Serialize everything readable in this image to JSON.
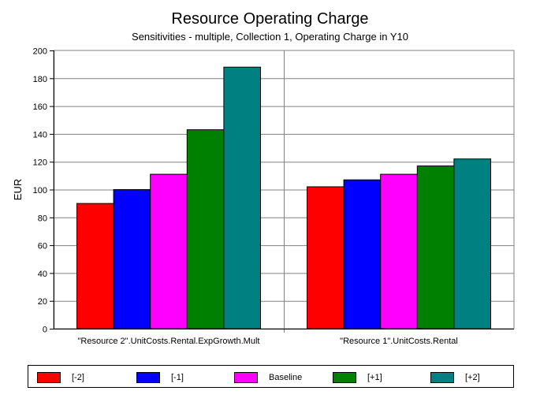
{
  "chart_data": {
    "type": "bar",
    "title": "Resource Operating Charge",
    "subtitle": "Sensitivities - multiple, Collection 1, Operating Charge in Y10",
    "xlabel": "",
    "ylabel": "EUR",
    "ylim": [
      0,
      200
    ],
    "yticks": [
      "0",
      "20",
      "40",
      "60",
      "80",
      "100",
      "120",
      "140",
      "160",
      "180",
      "200"
    ],
    "grid": true,
    "legend_position": "bottom",
    "categories": [
      "\"Resource 2\".UnitCosts.Rental.ExpGrowth.Mult",
      "\"Resource 1\".UnitCosts.Rental"
    ],
    "series": [
      {
        "name": "[-2]",
        "color": "#ff0000",
        "values": [
          90,
          102
        ]
      },
      {
        "name": "[-1]",
        "color": "#0000ff",
        "values": [
          100,
          107
        ]
      },
      {
        "name": "Baseline",
        "color": "#ff00ff",
        "values": [
          111,
          111
        ]
      },
      {
        "name": "[+1]",
        "color": "#008000",
        "values": [
          143,
          117
        ]
      },
      {
        "name": "[+2]",
        "color": "#008080",
        "values": [
          188,
          122
        ]
      }
    ]
  }
}
